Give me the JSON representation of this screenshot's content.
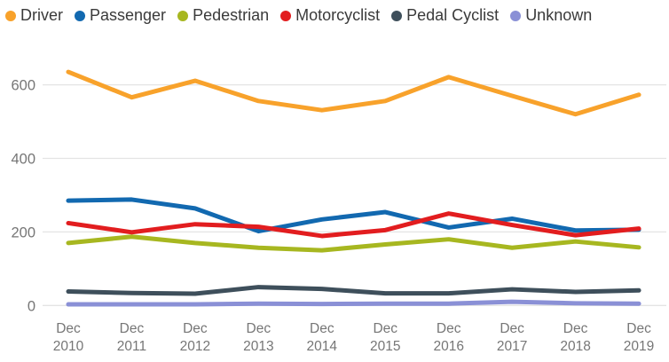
{
  "chart_data": {
    "type": "line",
    "title": "",
    "xlabel": "",
    "ylabel": "",
    "categories": [
      "Dec 2010",
      "Dec 2011",
      "Dec 2012",
      "Dec 2013",
      "Dec 2014",
      "Dec 2015",
      "Dec 2016",
      "Dec 2017",
      "Dec 2018",
      "Dec 2019"
    ],
    "series": [
      {
        "name": "Driver",
        "color": "#F8A22B",
        "values": [
          635,
          566,
          611,
          556,
          531,
          556,
          621,
          570,
          520,
          573
        ]
      },
      {
        "name": "Passenger",
        "color": "#1269B0",
        "values": [
          285,
          288,
          264,
          202,
          234,
          254,
          212,
          236,
          204,
          206
        ]
      },
      {
        "name": "Pedestrian",
        "color": "#A7B720",
        "values": [
          170,
          187,
          170,
          157,
          150,
          166,
          180,
          157,
          174,
          158
        ]
      },
      {
        "name": "Motorcyclist",
        "color": "#E21D1F",
        "values": [
          224,
          199,
          221,
          214,
          189,
          205,
          250,
          219,
          191,
          209
        ]
      },
      {
        "name": "Pedal Cyclist",
        "color": "#3E4F5B",
        "values": [
          38,
          34,
          32,
          50,
          45,
          33,
          33,
          44,
          37,
          41
        ]
      },
      {
        "name": "Unknown",
        "color": "#8A90D6",
        "values": [
          3,
          3,
          3,
          5,
          4,
          5,
          5,
          10,
          6,
          5
        ]
      }
    ],
    "ylim": [
      0,
      700
    ],
    "yticks": [
      0,
      200,
      400,
      600
    ],
    "grid": "horizontal",
    "legend_position": "top"
  },
  "styles": {
    "background": "#FFFFFF",
    "grid_color": "#E4E4E4",
    "axis_text_color": "#767676",
    "legend_text_color": "#3A3A3A"
  }
}
